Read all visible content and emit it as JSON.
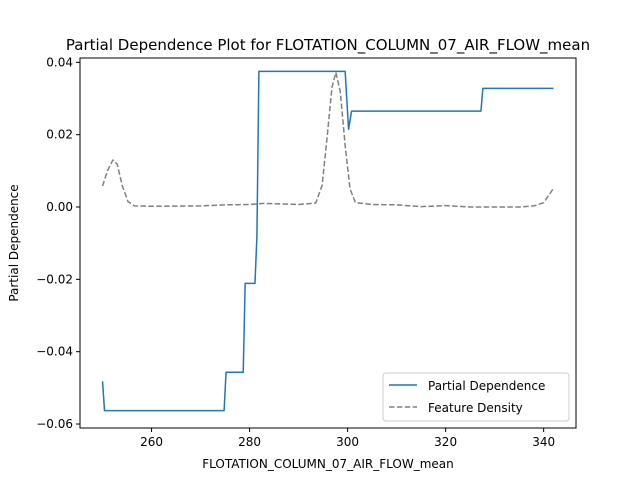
{
  "chart_data": {
    "type": "line",
    "title": "Partial Dependence Plot for FLOTATION_COLUMN_07_AIR_FLOW_mean",
    "xlabel": "FLOTATION_COLUMN_07_AIR_FLOW_mean",
    "ylabel": "Partial Dependence",
    "xlim": [
      245.4,
      346.6
    ],
    "ylim": [
      -0.0611,
      0.0412
    ],
    "xticks": [
      260,
      280,
      300,
      320,
      340
    ],
    "xtick_labels": [
      "260",
      "280",
      "300",
      "320",
      "340"
    ],
    "yticks": [
      -0.06,
      -0.04,
      -0.02,
      0.0,
      0.02,
      0.04
    ],
    "ytick_labels": [
      "−0.06",
      "−0.04",
      "−0.02",
      "0.00",
      "0.02",
      "0.04"
    ],
    "legend_position": "lower-right",
    "series": [
      {
        "name": "Partial Dependence",
        "color": "#1f77b4",
        "style": "solid",
        "points": [
          [
            250.0,
            -0.0482
          ],
          [
            250.4,
            -0.0563
          ],
          [
            274.8,
            -0.0563
          ],
          [
            275.2,
            -0.0457
          ],
          [
            278.7,
            -0.0457
          ],
          [
            279.1,
            -0.0211
          ],
          [
            281.1,
            -0.0211
          ],
          [
            281.5,
            -0.008
          ],
          [
            281.9,
            0.0375
          ],
          [
            299.5,
            0.0375
          ],
          [
            300.2,
            0.0215
          ],
          [
            300.8,
            0.0265
          ],
          [
            327.2,
            0.0265
          ],
          [
            327.6,
            0.0328
          ],
          [
            342.0,
            0.0328
          ]
        ]
      },
      {
        "name": "Feature Density",
        "color": "#808080",
        "style": "dashed",
        "points": [
          [
            250.0,
            0.0058
          ],
          [
            251.0,
            0.01
          ],
          [
            252.1,
            0.013
          ],
          [
            253.0,
            0.0118
          ],
          [
            254.0,
            0.006
          ],
          [
            255.2,
            0.0015
          ],
          [
            256.5,
            0.0003
          ],
          [
            260.0,
            0.0002
          ],
          [
            270.0,
            0.0003
          ],
          [
            275.0,
            0.0006
          ],
          [
            280.0,
            0.0007
          ],
          [
            283.0,
            0.001
          ],
          [
            290.0,
            0.0007
          ],
          [
            293.5,
            0.0011
          ],
          [
            294.8,
            0.006
          ],
          [
            295.8,
            0.019
          ],
          [
            296.8,
            0.033
          ],
          [
            297.6,
            0.0372
          ],
          [
            298.5,
            0.032
          ],
          [
            299.5,
            0.017
          ],
          [
            300.5,
            0.005
          ],
          [
            301.6,
            0.0012
          ],
          [
            305.0,
            0.0007
          ],
          [
            310.0,
            0.0006
          ],
          [
            315.0,
            0.0001
          ],
          [
            320.0,
            0.0004
          ],
          [
            325.0,
            0.0
          ],
          [
            335.0,
            0.0
          ],
          [
            338.0,
            0.0003
          ],
          [
            340.0,
            0.0012
          ],
          [
            341.2,
            0.0035
          ],
          [
            342.0,
            0.0052
          ]
        ]
      }
    ]
  }
}
